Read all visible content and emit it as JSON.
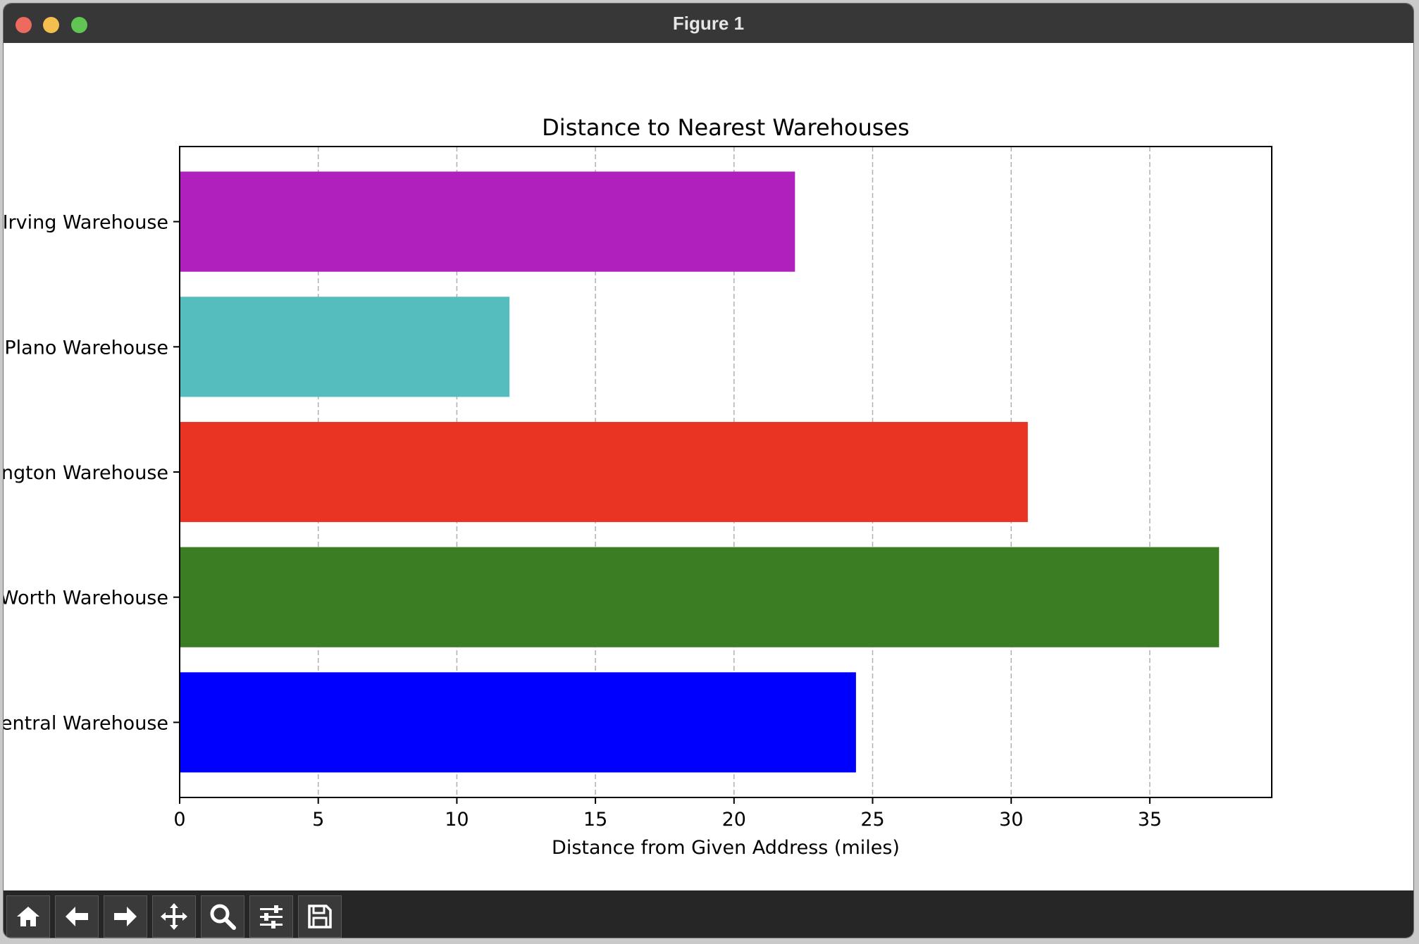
{
  "window": {
    "title": "Figure 1"
  },
  "toolbar": {
    "buttons": [
      {
        "name": "home-icon",
        "label": "Home"
      },
      {
        "name": "back-arrow-icon",
        "label": "Back"
      },
      {
        "name": "forward-arrow-icon",
        "label": "Forward"
      },
      {
        "name": "pan-icon",
        "label": "Pan"
      },
      {
        "name": "zoom-icon",
        "label": "Zoom"
      },
      {
        "name": "configure-subplots-icon",
        "label": "Configure subplots"
      },
      {
        "name": "save-icon",
        "label": "Save"
      }
    ]
  },
  "chart_data": {
    "type": "bar",
    "orientation": "horizontal",
    "title": "Distance to Nearest Warehouses",
    "xlabel": "Distance from Given Address (miles)",
    "ylabel": "",
    "categories": [
      "Central Warehouse",
      "Fort Worth Warehouse",
      "Arlington Warehouse",
      "Plano Warehouse",
      "Irving Warehouse"
    ],
    "values": [
      24.4,
      37.5,
      30.6,
      11.9,
      22.2
    ],
    "colors": [
      "#0000ff",
      "#3a7d22",
      "#e93323",
      "#55bdbd",
      "#b020bc"
    ],
    "xlim": [
      0,
      39.4
    ],
    "xticks": [
      0,
      5,
      10,
      15,
      20,
      25,
      30,
      35
    ],
    "grid": {
      "x": true,
      "y": false,
      "style": "dashed"
    }
  }
}
